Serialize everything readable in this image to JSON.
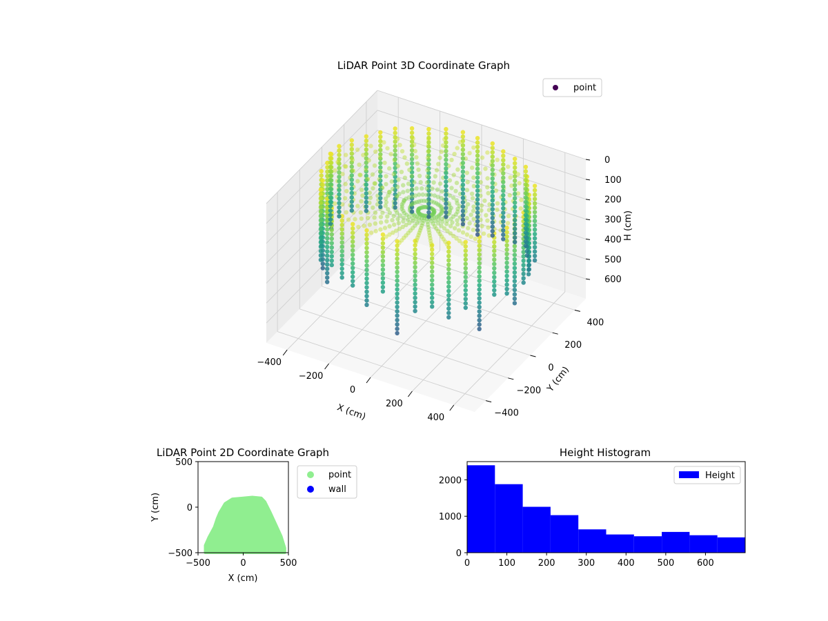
{
  "chart_data": [
    {
      "type": "scatter",
      "projection": "3d",
      "title": "LiDAR Point 3D Coordinate Graph",
      "xlabel": "X (cm)",
      "ylabel": "Y (cm)",
      "zlabel": "H (cm)",
      "xlim": [
        -500,
        500
      ],
      "ylim": [
        -500,
        500
      ],
      "zlim": [
        0,
        700
      ],
      "z_inverted": true,
      "xticks": [
        -400,
        -200,
        0,
        200,
        400
      ],
      "yticks": [
        -400,
        -200,
        0,
        200,
        400
      ],
      "zticks": [
        0,
        100,
        200,
        300,
        400,
        500,
        600
      ],
      "colormap": "viridis",
      "legend": {
        "location": "upper right",
        "entries": [
          {
            "label": "point",
            "color": "#440154"
          }
        ]
      },
      "grid": true
    },
    {
      "type": "scatter",
      "title": "LiDAR Point 2D Coordinate Graph",
      "xlabel": "X (cm)",
      "ylabel": "Y (cm)",
      "xlim": [
        -500,
        500
      ],
      "ylim": [
        -500,
        500
      ],
      "xticks": [
        -500,
        0,
        500
      ],
      "yticks": [
        -500,
        0,
        500
      ],
      "series": [
        {
          "name": "point",
          "color": "#90ee90"
        },
        {
          "name": "wall",
          "color": "#0000ff"
        }
      ],
      "region_outline": [
        [
          -420,
          -500
        ],
        [
          -420,
          -420
        ],
        [
          -380,
          -330
        ],
        [
          -320,
          -220
        ],
        [
          -290,
          -130
        ],
        [
          -260,
          -60
        ],
        [
          -200,
          40
        ],
        [
          -120,
          90
        ],
        [
          0,
          100
        ],
        [
          100,
          110
        ],
        [
          200,
          100
        ],
        [
          240,
          60
        ],
        [
          300,
          -60
        ],
        [
          360,
          -190
        ],
        [
          420,
          -320
        ],
        [
          460,
          -450
        ],
        [
          460,
          -500
        ]
      ],
      "legend": {
        "location": "outside right"
      }
    },
    {
      "type": "bar",
      "title": "Height Histogram",
      "xlabel": "",
      "ylabel": "",
      "xlim": [
        0,
        700
      ],
      "ylim": [
        0,
        2500
      ],
      "xticks": [
        0,
        100,
        200,
        300,
        400,
        500,
        600
      ],
      "yticks": [
        0,
        1000,
        2000
      ],
      "bin_edges": [
        0,
        70,
        140,
        210,
        280,
        350,
        420,
        490,
        560,
        630,
        700
      ],
      "values": [
        2400,
        1880,
        1260,
        1030,
        640,
        500,
        450,
        570,
        480,
        420
      ],
      "color": "#0000ff",
      "legend": {
        "location": "upper right",
        "entries": [
          {
            "label": "Height",
            "color": "#0000ff"
          }
        ]
      }
    }
  ]
}
